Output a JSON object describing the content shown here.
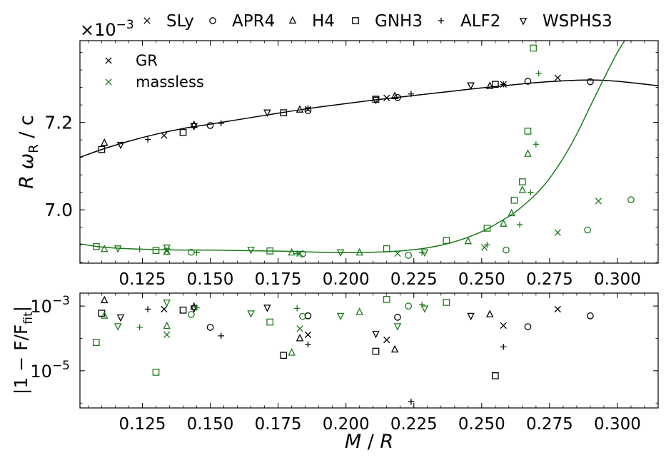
{
  "chart_data": [
    {
      "type": "scatter",
      "panel": "top",
      "title": "",
      "xlabel": "",
      "ylabel": "R ω_R / c",
      "ylabel_parts": {
        "var": "R ω",
        "sub": "R",
        "rest": " / c"
      },
      "offset_text": {
        "base": "×10",
        "exp": "−3"
      },
      "xlim": [
        0.102,
        0.315
      ],
      "ylim": [
        6.878,
        7.387
      ],
      "xticks": [
        0.125,
        0.15,
        0.175,
        0.2,
        0.225,
        0.25,
        0.275,
        0.3
      ],
      "xtick_labels": [
        "0.125",
        "0.150",
        "0.175",
        "0.200",
        "0.225",
        "0.250",
        "0.275",
        "0.300"
      ],
      "yticks": [
        7.0,
        7.2
      ],
      "ytick_labels": [
        "7.0",
        "7.2"
      ],
      "grid": false,
      "legend": {
        "placement": "top-left",
        "entries": [
          {
            "label": "GR",
            "marker": "x",
            "color": "#000000"
          },
          {
            "label": "massless",
            "marker": "x",
            "color": "#1a7a1a"
          }
        ]
      },
      "fit_curves": [
        {
          "name": "GR fit",
          "color": "#000000",
          "x": [
            0.102,
            0.11,
            0.12,
            0.13,
            0.14,
            0.15,
            0.16,
            0.17,
            0.18,
            0.19,
            0.2,
            0.21,
            0.22,
            0.23,
            0.24,
            0.25,
            0.26,
            0.27,
            0.28,
            0.29,
            0.3,
            0.315
          ],
          "y": [
            7.12,
            7.138,
            7.157,
            7.173,
            7.186,
            7.196,
            7.206,
            7.216,
            7.226,
            7.235,
            7.243,
            7.251,
            7.258,
            7.265,
            7.272,
            7.279,
            7.285,
            7.291,
            7.295,
            7.297,
            7.294,
            7.284
          ]
        },
        {
          "name": "massless fit",
          "color": "#1a7a1a",
          "x": [
            0.102,
            0.11,
            0.12,
            0.13,
            0.14,
            0.15,
            0.16,
            0.17,
            0.18,
            0.19,
            0.2,
            0.21,
            0.22,
            0.23,
            0.24,
            0.25,
            0.26,
            0.265,
            0.27,
            0.275,
            0.28,
            0.285,
            0.29,
            0.295,
            0.3,
            0.304
          ],
          "y": [
            6.922,
            6.915,
            6.911,
            6.909,
            6.908,
            6.908,
            6.907,
            6.906,
            6.905,
            6.903,
            6.902,
            6.903,
            6.906,
            6.913,
            6.927,
            6.95,
            6.985,
            7.008,
            7.036,
            7.072,
            7.118,
            7.173,
            7.237,
            7.3,
            7.36,
            7.4
          ]
        }
      ],
      "series": [
        {
          "name": "SLy GR",
          "group": "GR",
          "marker": "x",
          "color": "#000000",
          "x": [
            0.133,
            0.186,
            0.215,
            0.258,
            0.278
          ],
          "y": [
            7.17,
            7.23,
            7.256,
            7.287,
            7.302
          ]
        },
        {
          "name": "APR4 GR",
          "group": "GR",
          "marker": "o",
          "color": "#000000",
          "x": [
            0.15,
            0.186,
            0.219,
            0.267,
            0.29
          ],
          "y": [
            7.193,
            7.227,
            7.257,
            7.294,
            7.293
          ]
        },
        {
          "name": "H4 GR",
          "group": "GR",
          "marker": "^",
          "color": "#000000",
          "x": [
            0.111,
            0.144,
            0.183,
            0.218,
            0.253
          ],
          "y": [
            7.153,
            7.194,
            7.229,
            7.26,
            7.283
          ]
        },
        {
          "name": "GNH3 GR",
          "group": "GR",
          "marker": "s",
          "color": "#000000",
          "x": [
            0.11,
            0.14,
            0.177,
            0.211,
            0.255
          ],
          "y": [
            7.138,
            7.177,
            7.222,
            7.253,
            7.287
          ]
        },
        {
          "name": "ALF2 GR",
          "group": "GR",
          "marker": "+",
          "color": "#000000",
          "x": [
            0.127,
            0.154,
            0.186,
            0.224,
            0.258
          ],
          "y": [
            7.161,
            7.198,
            7.233,
            7.265,
            7.287
          ]
        },
        {
          "name": "WSPHS3 GR",
          "group": "GR",
          "marker": "v",
          "color": "#000000",
          "x": [
            0.117,
            0.144,
            0.171,
            0.211,
            0.246
          ],
          "y": [
            7.149,
            7.192,
            7.223,
            7.252,
            7.285
          ]
        },
        {
          "name": "SLy massless",
          "group": "massless",
          "marker": "x",
          "color": "#1a7a1a",
          "x": [
            0.134,
            0.183,
            0.219,
            0.251,
            0.278,
            0.293
          ],
          "y": [
            6.906,
            6.9,
            6.9,
            6.914,
            6.948,
            7.02
          ]
        },
        {
          "name": "APR4 massless",
          "group": "massless",
          "marker": "o",
          "color": "#1a7a1a",
          "x": [
            0.143,
            0.184,
            0.223,
            0.259,
            0.289,
            0.305
          ],
          "y": [
            6.903,
            6.899,
            6.896,
            6.908,
            6.954,
            7.023
          ]
        },
        {
          "name": "H4 massless",
          "group": "massless",
          "marker": "^",
          "color": "#1a7a1a",
          "x": [
            0.111,
            0.134,
            0.18,
            0.205,
            0.245,
            0.258,
            0.261,
            0.265,
            0.267
          ],
          "y": [
            6.91,
            6.904,
            6.902,
            6.902,
            6.928,
            6.968,
            6.992,
            7.045,
            7.128
          ]
        },
        {
          "name": "GNH3 massless",
          "group": "massless",
          "marker": "s",
          "color": "#1a7a1a",
          "x": [
            0.108,
            0.13,
            0.172,
            0.215,
            0.237,
            0.252,
            0.262,
            0.265,
            0.267,
            0.269
          ],
          "y": [
            6.916,
            6.907,
            6.906,
            6.911,
            6.93,
            6.958,
            7.022,
            7.064,
            7.18,
            7.37
          ]
        },
        {
          "name": "ALF2 massless",
          "group": "massless",
          "marker": "+",
          "color": "#1a7a1a",
          "x": [
            0.124,
            0.145,
            0.182,
            0.228,
            0.252,
            0.264,
            0.268,
            0.27,
            0.271
          ],
          "y": [
            6.91,
            6.902,
            6.9,
            6.902,
            6.92,
            6.966,
            7.04,
            7.15,
            7.312
          ]
        },
        {
          "name": "WSPHS3 massless",
          "group": "massless",
          "marker": "v",
          "color": "#1a7a1a",
          "x": [
            0.116,
            0.134,
            0.165,
            0.198,
            0.229
          ],
          "y": [
            6.912,
            6.914,
            6.909,
            6.903,
            6.903
          ]
        }
      ]
    },
    {
      "type": "scatter",
      "panel": "bottom",
      "title": "",
      "xlabel": "M / R",
      "xlabel_parts": {
        "a": "M",
        "sep": " / ",
        "b": "R"
      },
      "ylabel": "|1 − F/F_fit|",
      "ylabel_parts": {
        "pre": "|1 − F/F",
        "sub": "fit",
        "post": "|"
      },
      "yscale": "log",
      "xlim": [
        0.102,
        0.315
      ],
      "ylim_log10": [
        -6.15,
        -2.6
      ],
      "xticks": [
        0.125,
        0.15,
        0.175,
        0.2,
        0.225,
        0.25,
        0.275,
        0.3
      ],
      "xtick_labels": [
        "0.125",
        "0.150",
        "0.175",
        "0.200",
        "0.225",
        "0.250",
        "0.275",
        "0.300"
      ],
      "yticks_log10": [
        -5,
        -3
      ],
      "ytick_labels": [
        {
          "base": "10",
          "exp": "−5"
        },
        {
          "base": "10",
          "exp": "−3"
        }
      ],
      "grid": false,
      "series": [
        {
          "name": "SLy GR",
          "marker": "x",
          "color": "#000000",
          "x": [
            0.133,
            0.186,
            0.215,
            0.258,
            0.278
          ],
          "y": [
            0.0008,
            0.00013,
            9e-05,
            0.00025,
            0.0008
          ]
        },
        {
          "name": "APR4 GR",
          "marker": "o",
          "color": "#000000",
          "x": [
            0.15,
            0.186,
            0.219,
            0.267,
            0.29
          ],
          "y": [
            0.00022,
            0.0005,
            0.00045,
            0.00023,
            0.0005
          ]
        },
        {
          "name": "H4 GR",
          "marker": "^",
          "color": "#000000",
          "x": [
            0.111,
            0.144,
            0.183,
            0.218,
            0.253
          ],
          "y": [
            0.0015,
            0.00095,
            0.0001,
            4.5e-05,
            0.00055
          ]
        },
        {
          "name": "GNH3 GR",
          "marker": "s",
          "color": "#000000",
          "x": [
            0.11,
            0.14,
            0.177,
            0.211,
            0.255
          ],
          "y": [
            0.0006,
            0.00075,
            3e-05,
            4e-05,
            7e-06
          ]
        },
        {
          "name": "ALF2 GR",
          "marker": "+",
          "color": "#000000",
          "x": [
            0.127,
            0.154,
            0.186,
            0.224,
            0.258
          ],
          "y": [
            0.0008,
            0.00012,
            6.5e-05,
            1.1e-06,
            5.5e-05
          ]
        },
        {
          "name": "WSPHS3 GR",
          "marker": "v",
          "color": "#000000",
          "x": [
            0.117,
            0.144,
            0.171,
            0.211,
            0.246
          ],
          "y": [
            0.00045,
            0.00085,
            0.0009,
            0.00014,
            0.0005
          ]
        },
        {
          "name": "SLy massless",
          "marker": "x",
          "color": "#1a7a1a",
          "x": [
            0.134,
            0.183
          ],
          "y": [
            0.00013,
            0.0002
          ]
        },
        {
          "name": "APR4 massless",
          "marker": "o",
          "color": "#1a7a1a",
          "x": [
            0.143,
            0.184,
            0.223
          ],
          "y": [
            0.00055,
            0.00048,
            0.001
          ]
        },
        {
          "name": "H4 massless",
          "marker": "^",
          "color": "#1a7a1a",
          "x": [
            0.111,
            0.134,
            0.18,
            0.205
          ],
          "y": [
            0.0005,
            0.00024,
            3.6e-05,
            0.00065
          ]
        },
        {
          "name": "GNH3 massless",
          "marker": "s",
          "color": "#1a7a1a",
          "x": [
            0.108,
            0.13,
            0.172,
            0.215,
            0.237
          ],
          "y": [
            7.5e-05,
            9e-06,
            0.00032,
            0.0016,
            0.0013
          ]
        },
        {
          "name": "ALF2 massless",
          "marker": "+",
          "color": "#1a7a1a",
          "x": [
            0.124,
            0.145,
            0.182,
            0.228
          ],
          "y": [
            0.00022,
            0.0009,
            0.00085,
            0.0011
          ]
        },
        {
          "name": "WSPHS3 massless",
          "marker": "v",
          "color": "#1a7a1a",
          "x": [
            0.116,
            0.134,
            0.165,
            0.198,
            0.219,
            0.229
          ],
          "y": [
            0.00024,
            0.0013,
            0.0006,
            0.0005,
            0.00024,
            0.00085
          ]
        }
      ]
    }
  ],
  "top_legend": {
    "entries": [
      {
        "label": "SLy",
        "marker": "x"
      },
      {
        "label": "APR4",
        "marker": "o"
      },
      {
        "label": "H4",
        "marker": "^"
      },
      {
        "label": "GNH3",
        "marker": "s"
      },
      {
        "label": "ALF2",
        "marker": "+"
      },
      {
        "label": "WSPHS3",
        "marker": "v"
      }
    ]
  }
}
